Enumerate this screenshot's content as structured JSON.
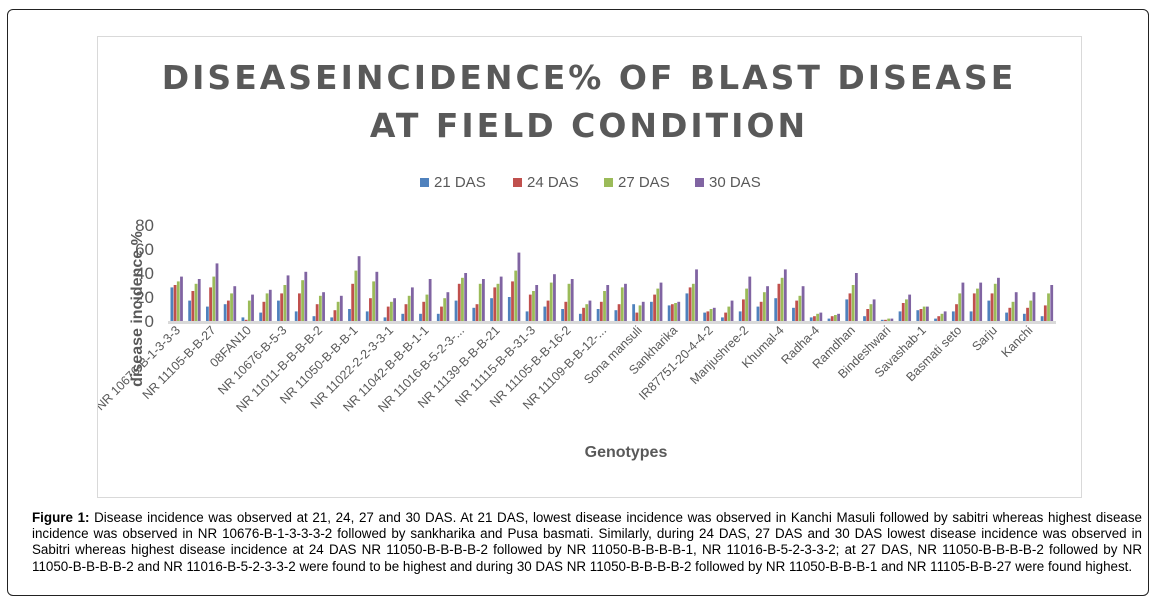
{
  "chart_data": {
    "type": "bar",
    "title_lines": [
      "DISEASEINCIDENCE% OF BLAST DISEASE",
      "AT FIELD CONDITION"
    ],
    "xlabel": "Genotypes",
    "ylabel": "disease incidence %",
    "ylim": [
      0,
      80
    ],
    "yticks": [
      "0",
      "20",
      "40",
      "60",
      "80"
    ],
    "legend_position": "top",
    "colors": [
      "#4f81bd",
      "#c0504d",
      "#9bbb59",
      "#8064a2"
    ],
    "series_names": [
      "21 DAS",
      "24 DAS",
      "27 DAS",
      "30 DAS"
    ],
    "x_tick_labels": [
      {
        "label": "NR 10676-B-1-3-3-3",
        "index": 0
      },
      {
        "label": "NR 11105-B-B-27",
        "index": 2
      },
      {
        "label": "08FAN10",
        "index": 4
      },
      {
        "label": "NR 10676-B-5-3",
        "index": 6
      },
      {
        "label": "NR 11011-B-B-B-B-2",
        "index": 8
      },
      {
        "label": "NR 11050-B-B-B-1",
        "index": 10
      },
      {
        "label": "NR 11022-2-2-3-3-1",
        "index": 12
      },
      {
        "label": "NR 11042-B-B-B-1-1",
        "index": 14
      },
      {
        "label": "NR 11016-B-5-2-3-...",
        "index": 16
      },
      {
        "label": "NR 11139-B-B-B-21",
        "index": 18
      },
      {
        "label": "NR 11115-B-B-31-3",
        "index": 20
      },
      {
        "label": "NR 11105-B-B-16-2",
        "index": 22
      },
      {
        "label": "NR 11109-B-B-12-...",
        "index": 24
      },
      {
        "label": "Sona mansuli",
        "index": 26
      },
      {
        "label": "Sankharika",
        "index": 28
      },
      {
        "label": "IR87751-20-4-4-2",
        "index": 30
      },
      {
        "label": "Manjushree-2",
        "index": 32
      },
      {
        "label": "Khumal-4",
        "index": 34
      },
      {
        "label": "Radha-4",
        "index": 36
      },
      {
        "label": "Ramdhan",
        "index": 38
      },
      {
        "label": "Bindeshwari",
        "index": 40
      },
      {
        "label": "Savashab-1",
        "index": 42
      },
      {
        "label": "Basmati seto",
        "index": 44
      },
      {
        "label": "Sarju",
        "index": 46
      },
      {
        "label": "Kanchi",
        "index": 48
      }
    ],
    "values": [
      [
        28,
        30,
        33,
        37
      ],
      [
        17,
        25,
        31,
        35
      ],
      [
        12,
        28,
        37,
        48
      ],
      [
        14,
        17,
        23,
        29
      ],
      [
        3,
        1,
        17,
        22
      ],
      [
        7,
        16,
        23,
        26
      ],
      [
        17,
        23,
        30,
        38
      ],
      [
        8,
        23,
        34,
        41
      ],
      [
        4,
        14,
        21,
        24
      ],
      [
        3,
        9,
        16,
        21
      ],
      [
        10,
        31,
        42,
        54
      ],
      [
        8,
        19,
        33,
        41
      ],
      [
        3,
        12,
        16,
        19
      ],
      [
        6,
        14,
        21,
        28
      ],
      [
        6,
        16,
        22,
        35
      ],
      [
        6,
        12,
        19,
        24
      ],
      [
        17,
        31,
        36,
        40
      ],
      [
        11,
        14,
        31,
        35
      ],
      [
        19,
        28,
        31,
        37
      ],
      [
        20,
        33,
        42,
        57
      ],
      [
        8,
        22,
        25,
        30
      ],
      [
        12,
        17,
        32,
        39
      ],
      [
        10,
        16,
        31,
        35
      ],
      [
        6,
        11,
        14,
        17
      ],
      [
        10,
        16,
        25,
        30
      ],
      [
        9,
        14,
        28,
        31
      ],
      [
        14,
        7,
        13,
        16
      ],
      [
        16,
        22,
        27,
        32
      ],
      [
        13,
        14,
        15,
        16
      ],
      [
        23,
        28,
        31,
        43
      ],
      [
        7,
        8,
        10,
        11
      ],
      [
        3,
        7,
        12,
        17
      ],
      [
        8,
        18,
        27,
        37
      ],
      [
        12,
        16,
        24,
        29
      ],
      [
        19,
        31,
        36,
        43
      ],
      [
        11,
        17,
        21,
        29
      ],
      [
        3,
        4,
        6,
        7
      ],
      [
        2,
        4,
        5,
        6
      ],
      [
        18,
        23,
        30,
        40
      ],
      [
        4,
        10,
        14,
        18
      ],
      [
        1,
        1,
        2,
        2
      ],
      [
        8,
        15,
        18,
        22
      ],
      [
        9,
        10,
        12,
        12
      ],
      [
        2,
        4,
        6,
        8
      ],
      [
        8,
        14,
        23,
        32
      ],
      [
        8,
        23,
        27,
        32
      ],
      [
        17,
        23,
        31,
        36
      ],
      [
        7,
        11,
        16,
        24
      ],
      [
        6,
        11,
        17,
        24
      ],
      [
        4,
        13,
        23,
        30
      ]
    ]
  },
  "caption": {
    "label": "Figure 1:",
    "text": " Disease incidence was observed at 21, 24, 27 and 30 DAS. At 21 DAS, lowest disease incidence was observed in Kanchi Masuli followed by sabitri whereas highest disease incidence was observed in NR 10676-B-1-3-3-3-2 followed by sankharika and Pusa basmati. Similarly, during 24 DAS, 27 DAS and 30 DAS lowest disease incidence was observed in Sabitri whereas highest disease incidence at 24 DAS NR 11050-B-B-B-B-2 followed by NR 11050-B-B-B-B-1, NR 11016-B-5-2-3-3-2; at 27 DAS, NR 11050-B-B-B-B-2 followed by NR 11050-B-B-B-B-2 and NR 11016-B-5-2-3-3-2 were found to be highest and during 30 DAS NR 11050-B-B-B-B-2 followed by NR 11050-B-B-B-1 and NR 11105-B-B-27 were found highest."
  }
}
